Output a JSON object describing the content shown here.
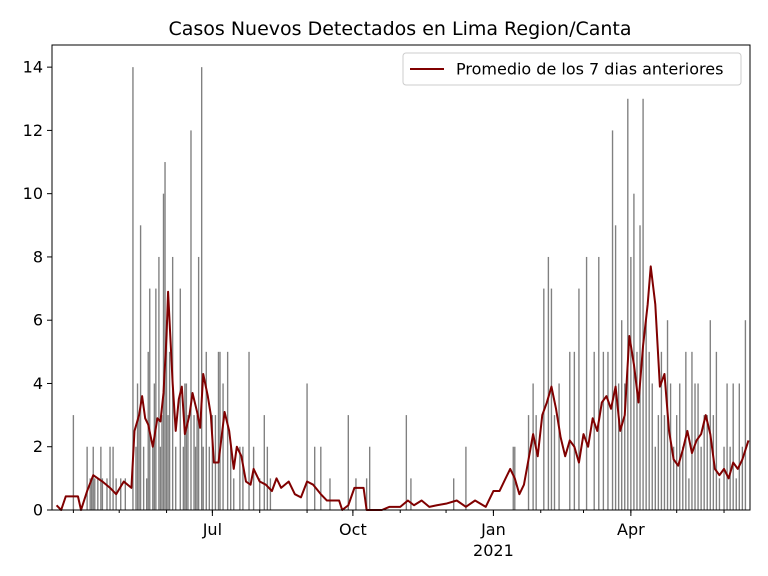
{
  "chart_data": {
    "type": "bar",
    "title": "Casos Nuevos Detectados en Lima Region/Canta",
    "xlabel": "",
    "ylabel": "",
    "ylim": [
      0,
      14.7
    ],
    "yticks": [
      0,
      2,
      4,
      6,
      8,
      10,
      12,
      14
    ],
    "x_start": "2020-03-18",
    "x_end": "2021-06-18",
    "xticks": [
      {
        "date": "2020-07-01",
        "label": "Jul",
        "sublabel": ""
      },
      {
        "date": "2020-10-01",
        "label": "Oct",
        "sublabel": ""
      },
      {
        "date": "2021-01-01",
        "label": "Jan",
        "sublabel": "2021"
      },
      {
        "date": "2021-04-01",
        "label": "Apr",
        "sublabel": ""
      }
    ],
    "grid": false,
    "legend": {
      "position": "top-right",
      "entries": [
        "Promedio de los 7 dias anteriores"
      ]
    },
    "colors": {
      "bars": "#808080",
      "line": "#800000"
    },
    "series": [
      {
        "kind": "bar",
        "points": [
          [
            "2020-04-01",
            3
          ],
          [
            "2020-04-10",
            2
          ],
          [
            "2020-04-12",
            1
          ],
          [
            "2020-04-13",
            1
          ],
          [
            "2020-04-14",
            2
          ],
          [
            "2020-04-15",
            1
          ],
          [
            "2020-04-17",
            1
          ],
          [
            "2020-04-19",
            2
          ],
          [
            "2020-04-20",
            1
          ],
          [
            "2020-04-23",
            1
          ],
          [
            "2020-04-25",
            2
          ],
          [
            "2020-04-27",
            2
          ],
          [
            "2020-04-29",
            1
          ],
          [
            "2020-05-02",
            1
          ],
          [
            "2020-05-05",
            1
          ],
          [
            "2020-05-10",
            14
          ],
          [
            "2020-05-12",
            2
          ],
          [
            "2020-05-13",
            4
          ],
          [
            "2020-05-14",
            3
          ],
          [
            "2020-05-15",
            9
          ],
          [
            "2020-05-17",
            2
          ],
          [
            "2020-05-19",
            1
          ],
          [
            "2020-05-20",
            5
          ],
          [
            "2020-05-21",
            7
          ],
          [
            "2020-05-23",
            2
          ],
          [
            "2020-05-24",
            4
          ],
          [
            "2020-05-25",
            7
          ],
          [
            "2020-05-27",
            8
          ],
          [
            "2020-05-28",
            2
          ],
          [
            "2020-05-29",
            3
          ],
          [
            "2020-05-30",
            10
          ],
          [
            "2020-05-31",
            11
          ],
          [
            "2020-06-01",
            6
          ],
          [
            "2020-06-02",
            3
          ],
          [
            "2020-06-03",
            5
          ],
          [
            "2020-06-05",
            8
          ],
          [
            "2020-06-07",
            2
          ],
          [
            "2020-06-10",
            7
          ],
          [
            "2020-06-12",
            2
          ],
          [
            "2020-06-13",
            4
          ],
          [
            "2020-06-14",
            4
          ],
          [
            "2020-06-15",
            3
          ],
          [
            "2020-06-17",
            12
          ],
          [
            "2020-06-19",
            3
          ],
          [
            "2020-06-20",
            2
          ],
          [
            "2020-06-21",
            3
          ],
          [
            "2020-06-22",
            8
          ],
          [
            "2020-06-24",
            14
          ],
          [
            "2020-06-25",
            2
          ],
          [
            "2020-06-27",
            5
          ],
          [
            "2020-06-29",
            2
          ],
          [
            "2020-07-01",
            3
          ],
          [
            "2020-07-03",
            3
          ],
          [
            "2020-07-05",
            5
          ],
          [
            "2020-07-06",
            5
          ],
          [
            "2020-07-08",
            4
          ],
          [
            "2020-07-11",
            5
          ],
          [
            "2020-07-13",
            2
          ],
          [
            "2020-07-15",
            1
          ],
          [
            "2020-07-19",
            2
          ],
          [
            "2020-07-21",
            2
          ],
          [
            "2020-07-25",
            5
          ],
          [
            "2020-07-28",
            2
          ],
          [
            "2020-08-01",
            1
          ],
          [
            "2020-08-04",
            3
          ],
          [
            "2020-08-06",
            2
          ],
          [
            "2020-08-08",
            1
          ],
          [
            "2020-09-01",
            4
          ],
          [
            "2020-09-06",
            2
          ],
          [
            "2020-09-10",
            2
          ],
          [
            "2020-09-16",
            1
          ],
          [
            "2020-09-28",
            3
          ],
          [
            "2020-10-03",
            1
          ],
          [
            "2020-10-10",
            1
          ],
          [
            "2020-10-12",
            2
          ],
          [
            "2020-11-05",
            3
          ],
          [
            "2020-11-08",
            1
          ],
          [
            "2020-12-06",
            1
          ],
          [
            "2020-12-14",
            2
          ],
          [
            "2021-01-14",
            2
          ],
          [
            "2021-01-15",
            2
          ],
          [
            "2021-01-24",
            3
          ],
          [
            "2021-01-27",
            4
          ],
          [
            "2021-01-29",
            3
          ],
          [
            "2021-02-03",
            7
          ],
          [
            "2021-02-06",
            8
          ],
          [
            "2021-02-08",
            7
          ],
          [
            "2021-02-10",
            3
          ],
          [
            "2021-02-13",
            4
          ],
          [
            "2021-02-20",
            5
          ],
          [
            "2021-02-23",
            5
          ],
          [
            "2021-02-26",
            7
          ],
          [
            "2021-03-03",
            8
          ],
          [
            "2021-03-08",
            5
          ],
          [
            "2021-03-11",
            8
          ],
          [
            "2021-03-14",
            5
          ],
          [
            "2021-03-17",
            5
          ],
          [
            "2021-03-20",
            12
          ],
          [
            "2021-03-22",
            9
          ],
          [
            "2021-03-24",
            4
          ],
          [
            "2021-03-26",
            6
          ],
          [
            "2021-03-28",
            4
          ],
          [
            "2021-03-30",
            13
          ],
          [
            "2021-04-01",
            8
          ],
          [
            "2021-04-03",
            10
          ],
          [
            "2021-04-05",
            5
          ],
          [
            "2021-04-07",
            9
          ],
          [
            "2021-04-09",
            13
          ],
          [
            "2021-04-11",
            6
          ],
          [
            "2021-04-13",
            5
          ],
          [
            "2021-04-15",
            4
          ],
          [
            "2021-04-17",
            2
          ],
          [
            "2021-04-19",
            3
          ],
          [
            "2021-04-21",
            5
          ],
          [
            "2021-04-23",
            3
          ],
          [
            "2021-04-25",
            6
          ],
          [
            "2021-04-27",
            4
          ],
          [
            "2021-04-29",
            2
          ],
          [
            "2021-05-01",
            3
          ],
          [
            "2021-05-03",
            4
          ],
          [
            "2021-05-05",
            2
          ],
          [
            "2021-05-07",
            5
          ],
          [
            "2021-05-09",
            1
          ],
          [
            "2021-05-11",
            5
          ],
          [
            "2021-05-13",
            4
          ],
          [
            "2021-05-15",
            4
          ],
          [
            "2021-05-17",
            2
          ],
          [
            "2021-05-19",
            3
          ],
          [
            "2021-05-21",
            3
          ],
          [
            "2021-05-23",
            6
          ],
          [
            "2021-05-25",
            3
          ],
          [
            "2021-05-27",
            5
          ],
          [
            "2021-05-29",
            1
          ],
          [
            "2021-06-01",
            2
          ],
          [
            "2021-06-03",
            4
          ],
          [
            "2021-06-05",
            2
          ],
          [
            "2021-06-07",
            4
          ],
          [
            "2021-06-09",
            1
          ],
          [
            "2021-06-11",
            4
          ],
          [
            "2021-06-13",
            2
          ],
          [
            "2021-06-15",
            6
          ]
        ]
      },
      {
        "kind": "line",
        "name": "Promedio de los 7 dias anteriores",
        "points": [
          [
            "2020-03-21",
            0.15
          ],
          [
            "2020-03-24",
            0.0
          ],
          [
            "2020-03-27",
            0.43
          ],
          [
            "2020-04-04",
            0.43
          ],
          [
            "2020-04-06",
            0.0
          ],
          [
            "2020-04-10",
            0.6
          ],
          [
            "2020-04-14",
            1.1
          ],
          [
            "2020-04-20",
            0.9
          ],
          [
            "2020-04-25",
            0.7
          ],
          [
            "2020-04-29",
            0.5
          ],
          [
            "2020-05-04",
            0.9
          ],
          [
            "2020-05-09",
            0.7
          ],
          [
            "2020-05-11",
            2.5
          ],
          [
            "2020-05-14",
            3.0
          ],
          [
            "2020-05-16",
            3.6
          ],
          [
            "2020-05-18",
            2.9
          ],
          [
            "2020-05-20",
            2.7
          ],
          [
            "2020-05-23",
            2.0
          ],
          [
            "2020-05-26",
            2.9
          ],
          [
            "2020-05-28",
            2.8
          ],
          [
            "2020-05-30",
            3.7
          ],
          [
            "2020-06-01",
            5.5
          ],
          [
            "2020-06-02",
            6.9
          ],
          [
            "2020-06-05",
            4.0
          ],
          [
            "2020-06-07",
            2.5
          ],
          [
            "2020-06-09",
            3.5
          ],
          [
            "2020-06-11",
            3.9
          ],
          [
            "2020-06-13",
            2.4
          ],
          [
            "2020-06-16",
            3.0
          ],
          [
            "2020-06-18",
            3.7
          ],
          [
            "2020-06-21",
            3.1
          ],
          [
            "2020-06-23",
            2.6
          ],
          [
            "2020-06-25",
            4.3
          ],
          [
            "2020-06-28",
            3.6
          ],
          [
            "2020-06-30",
            3.0
          ],
          [
            "2020-07-02",
            1.5
          ],
          [
            "2020-07-05",
            1.5
          ],
          [
            "2020-07-09",
            3.1
          ],
          [
            "2020-07-12",
            2.5
          ],
          [
            "2020-07-15",
            1.3
          ],
          [
            "2020-07-17",
            2.0
          ],
          [
            "2020-07-20",
            1.7
          ],
          [
            "2020-07-23",
            0.9
          ],
          [
            "2020-07-26",
            0.8
          ],
          [
            "2020-07-28",
            1.3
          ],
          [
            "2020-08-01",
            0.9
          ],
          [
            "2020-08-05",
            0.8
          ],
          [
            "2020-08-09",
            0.6
          ],
          [
            "2020-08-12",
            1.0
          ],
          [
            "2020-08-15",
            0.7
          ],
          [
            "2020-08-20",
            0.9
          ],
          [
            "2020-08-24",
            0.5
          ],
          [
            "2020-08-28",
            0.4
          ],
          [
            "2020-09-01",
            0.9
          ],
          [
            "2020-09-05",
            0.8
          ],
          [
            "2020-09-10",
            0.5
          ],
          [
            "2020-09-14",
            0.3
          ],
          [
            "2020-09-18",
            0.3
          ],
          [
            "2020-09-22",
            0.3
          ],
          [
            "2020-09-24",
            0.0
          ],
          [
            "2020-09-28",
            0.15
          ],
          [
            "2020-10-02",
            0.7
          ],
          [
            "2020-10-08",
            0.7
          ],
          [
            "2020-10-10",
            0.0
          ],
          [
            "2020-10-20",
            0.0
          ],
          [
            "2020-10-25",
            0.1
          ],
          [
            "2020-11-01",
            0.1
          ],
          [
            "2020-11-06",
            0.3
          ],
          [
            "2020-11-10",
            0.15
          ],
          [
            "2020-11-15",
            0.3
          ],
          [
            "2020-11-20",
            0.1
          ],
          [
            "2020-11-25",
            0.15
          ],
          [
            "2020-12-01",
            0.2
          ],
          [
            "2020-12-08",
            0.3
          ],
          [
            "2020-12-14",
            0.1
          ],
          [
            "2020-12-20",
            0.3
          ],
          [
            "2020-12-27",
            0.1
          ],
          [
            "2021-01-01",
            0.6
          ],
          [
            "2021-01-05",
            0.6
          ],
          [
            "2021-01-09",
            1.0
          ],
          [
            "2021-01-12",
            1.3
          ],
          [
            "2021-01-15",
            1.0
          ],
          [
            "2021-01-18",
            0.5
          ],
          [
            "2021-01-21",
            0.8
          ],
          [
            "2021-01-24",
            1.6
          ],
          [
            "2021-01-27",
            2.4
          ],
          [
            "2021-01-30",
            1.7
          ],
          [
            "2021-02-02",
            3.0
          ],
          [
            "2021-02-05",
            3.4
          ],
          [
            "2021-02-08",
            3.9
          ],
          [
            "2021-02-11",
            3.2
          ],
          [
            "2021-02-14",
            2.3
          ],
          [
            "2021-02-17",
            1.7
          ],
          [
            "2021-02-20",
            2.2
          ],
          [
            "2021-02-23",
            2.0
          ],
          [
            "2021-02-26",
            1.5
          ],
          [
            "2021-03-01",
            2.4
          ],
          [
            "2021-03-04",
            2.0
          ],
          [
            "2021-03-07",
            2.9
          ],
          [
            "2021-03-10",
            2.5
          ],
          [
            "2021-03-13",
            3.4
          ],
          [
            "2021-03-16",
            3.6
          ],
          [
            "2021-03-19",
            3.2
          ],
          [
            "2021-03-22",
            3.9
          ],
          [
            "2021-03-25",
            2.5
          ],
          [
            "2021-03-28",
            3.0
          ],
          [
            "2021-03-31",
            5.5
          ],
          [
            "2021-04-03",
            4.6
          ],
          [
            "2021-04-06",
            3.4
          ],
          [
            "2021-04-09",
            5.2
          ],
          [
            "2021-04-12",
            6.5
          ],
          [
            "2021-04-14",
            7.7
          ],
          [
            "2021-04-17",
            6.5
          ],
          [
            "2021-04-20",
            3.9
          ],
          [
            "2021-04-23",
            4.3
          ],
          [
            "2021-04-26",
            2.5
          ],
          [
            "2021-04-29",
            1.6
          ],
          [
            "2021-05-02",
            1.4
          ],
          [
            "2021-05-05",
            1.9
          ],
          [
            "2021-05-08",
            2.5
          ],
          [
            "2021-05-11",
            1.8
          ],
          [
            "2021-05-14",
            2.2
          ],
          [
            "2021-05-17",
            2.4
          ],
          [
            "2021-05-20",
            3.0
          ],
          [
            "2021-05-23",
            2.4
          ],
          [
            "2021-05-26",
            1.3
          ],
          [
            "2021-05-29",
            1.1
          ],
          [
            "2021-06-01",
            1.3
          ],
          [
            "2021-06-04",
            1.0
          ],
          [
            "2021-06-07",
            1.5
          ],
          [
            "2021-06-10",
            1.3
          ],
          [
            "2021-06-13",
            1.6
          ],
          [
            "2021-06-17",
            2.2
          ]
        ]
      }
    ]
  }
}
